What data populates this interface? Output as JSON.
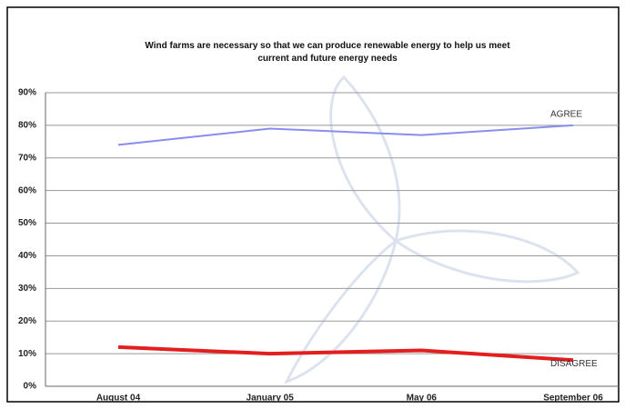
{
  "chart_data": {
    "type": "line",
    "title": "Wind farms are necessary so that we can produce renewable energy to help us meet current and future energy needs",
    "categories": [
      "August 04",
      "January 05",
      "May 06",
      "September 06"
    ],
    "series": [
      {
        "name": "AGREE",
        "color": "#8a8cf0",
        "values": [
          74,
          79,
          77,
          80
        ]
      },
      {
        "name": "DISAGREE",
        "color": "#e41e1e",
        "values": [
          12,
          10,
          11,
          8
        ]
      }
    ],
    "ylim": [
      0,
      90
    ],
    "yticks": [
      {
        "value": 0,
        "label": "0%"
      },
      {
        "value": 10,
        "label": "10%"
      },
      {
        "value": 20,
        "label": "20%"
      },
      {
        "value": 30,
        "label": "30%"
      },
      {
        "value": 40,
        "label": "40%"
      },
      {
        "value": 50,
        "label": "50%"
      },
      {
        "value": 60,
        "label": "60%"
      },
      {
        "value": 70,
        "label": "70%"
      },
      {
        "value": 80,
        "label": "80%"
      },
      {
        "value": 90,
        "label": "90%"
      }
    ],
    "grid": true
  }
}
